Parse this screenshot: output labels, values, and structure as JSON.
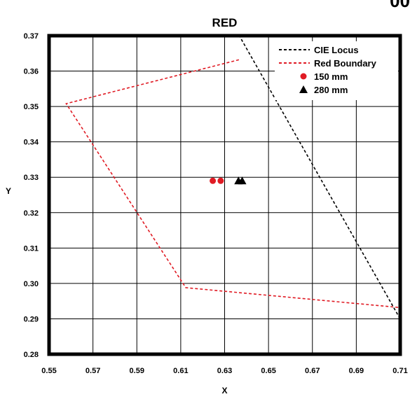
{
  "corner_text": "00",
  "chart_data": {
    "type": "scatter",
    "title": "RED",
    "xlabel": "X",
    "ylabel": "Y",
    "xlim": [
      0.55,
      0.71
    ],
    "ylim": [
      0.28,
      0.37
    ],
    "xticks": [
      "0.55",
      "0.57",
      "0.59",
      "0.61",
      "0.63",
      "0.65",
      "0.67",
      "0.69",
      "0.71"
    ],
    "yticks": [
      "0.28",
      "0.29",
      "0.30",
      "0.31",
      "0.32",
      "0.33",
      "0.34",
      "0.35",
      "0.36",
      "0.37"
    ],
    "grid": true,
    "legend_position": "top-right",
    "series": [
      {
        "name": "CIE Locus",
        "kind": "line",
        "style": "dashed",
        "color": "#000000",
        "points": [
          [
            0.6365,
            0.3702
          ],
          [
            0.7095,
            0.2905
          ]
        ]
      },
      {
        "name": "Red Boundary",
        "kind": "line",
        "style": "dashed",
        "color": "#e01b24",
        "points": [
          [
            0.6365,
            0.3632
          ],
          [
            0.5578,
            0.3508
          ],
          [
            0.6123,
            0.2988
          ],
          [
            0.7095,
            0.2932
          ]
        ]
      },
      {
        "name": "150 mm",
        "kind": "marker",
        "marker": "circle",
        "color": "#e01b24",
        "points": [
          [
            0.6246,
            0.329
          ],
          [
            0.6282,
            0.329
          ]
        ]
      },
      {
        "name": "280 mm",
        "kind": "marker",
        "marker": "triangle",
        "color": "#000000",
        "points": [
          [
            0.6363,
            0.329
          ],
          [
            0.638,
            0.329
          ]
        ]
      }
    ]
  }
}
